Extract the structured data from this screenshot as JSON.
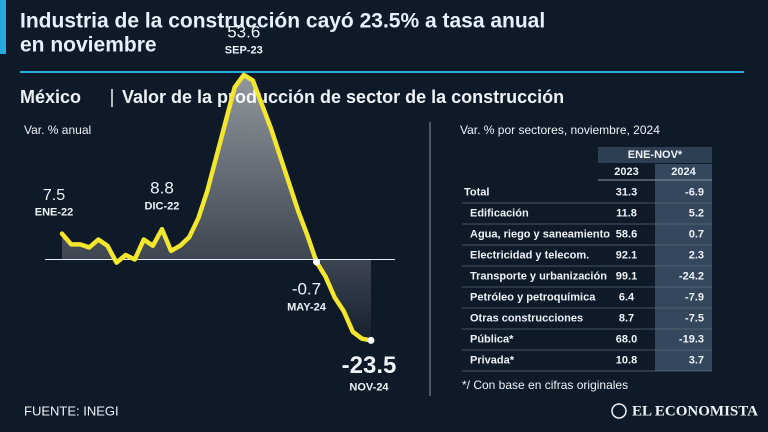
{
  "header": {
    "title_line1": "Industria de la construcción cayó 23.5% a tasa anual",
    "title_line2": "en noviembre",
    "subtitle_region": "México",
    "subtitle": "Valor de la producción de sector de la construcción"
  },
  "chart_data": {
    "type": "line",
    "y_label": "Var. % anual",
    "categories": [
      "ENE-22",
      null,
      null,
      null,
      null,
      null,
      null,
      null,
      null,
      null,
      null,
      "DIC-22",
      null,
      null,
      null,
      null,
      null,
      null,
      null,
      null,
      "SEP-23",
      null,
      null,
      null,
      null,
      null,
      null,
      null,
      "MAY-24",
      null,
      null,
      null,
      null,
      null,
      "NOV-24"
    ],
    "ylim": [
      -30,
      60
    ],
    "series": [
      {
        "color": "#f3e62c",
        "values": [
          7.5,
          4.4,
          4.4,
          3.5,
          5.8,
          4,
          -0.9,
          1.3,
          0,
          5.8,
          4,
          8.8,
          2.5,
          4,
          6.5,
          12,
          20,
          30,
          40,
          50,
          53.6,
          52,
          45,
          38,
          30,
          22,
          14,
          7,
          -0.7,
          -5,
          -11,
          -15,
          -21,
          -23,
          -23.5
        ]
      }
    ]
  },
  "table": {
    "title": "Var. % por sectores, noviembre, 2024",
    "group_header": "ENE-NOV*",
    "columns": [
      "2023",
      "2024"
    ],
    "rows": [
      [
        "Total",
        "31.3",
        "-6.9"
      ],
      [
        "Edificación",
        "11.8",
        "5.2"
      ],
      [
        "Agua, riego y saneamiento",
        "58.6",
        "0.7"
      ],
      [
        "Electricidad y telecom.",
        "92.1",
        "2.3"
      ],
      [
        "Transporte y urbanización",
        "99.1",
        "-24.2"
      ],
      [
        "Petróleo y petroquímica",
        "6.4",
        "-7.9"
      ],
      [
        "Otras construcciones",
        "8.7",
        "-7.5"
      ],
      [
        "Pública*",
        "68.0",
        "-19.3"
      ],
      [
        "Privada*",
        "10.8",
        "3.7"
      ]
    ],
    "note": "*/ Con base en cifras originales"
  },
  "footer": {
    "source": "FUENTE: INEGI",
    "brand": "EL ECONOMISTA"
  }
}
